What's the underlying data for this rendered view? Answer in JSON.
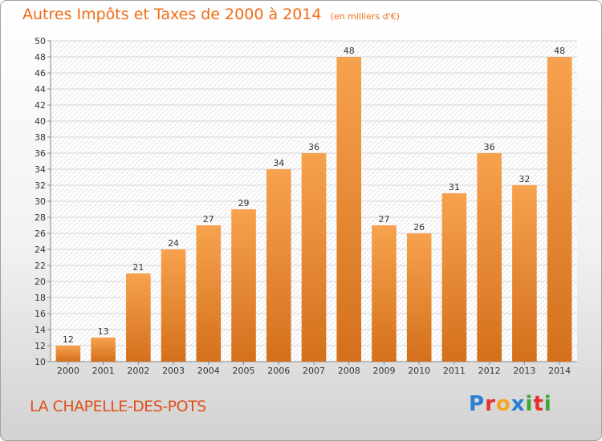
{
  "header": {
    "title": "Autres Impôts et Taxes de 2000 à 2014",
    "subtitle": "(en milliers d'€)"
  },
  "footer": {
    "commune": "LA CHAPELLE-DES-POTS",
    "logo": "Proxiti"
  },
  "colors": {
    "accent": "#f06c16",
    "bar_light": "#f7a24e",
    "bar_dark": "#d4701c"
  },
  "chart_data": {
    "type": "bar",
    "title": "Autres Impôts et Taxes de 2000 à 2014",
    "subtitle": "(en milliers d'€)",
    "categories": [
      "2000",
      "2001",
      "2002",
      "2003",
      "2004",
      "2005",
      "2006",
      "2007",
      "2008",
      "2009",
      "2010",
      "2011",
      "2012",
      "2013",
      "2014"
    ],
    "values": [
      12,
      13,
      21,
      24,
      27,
      29,
      34,
      36,
      48,
      27,
      26,
      31,
      36,
      32,
      48
    ],
    "ylim": [
      10,
      50
    ],
    "yticks": [
      10,
      12,
      14,
      16,
      18,
      20,
      22,
      24,
      26,
      28,
      30,
      32,
      34,
      36,
      38,
      40,
      42,
      44,
      46,
      48,
      50
    ],
    "grid": true,
    "data_labels": true
  }
}
